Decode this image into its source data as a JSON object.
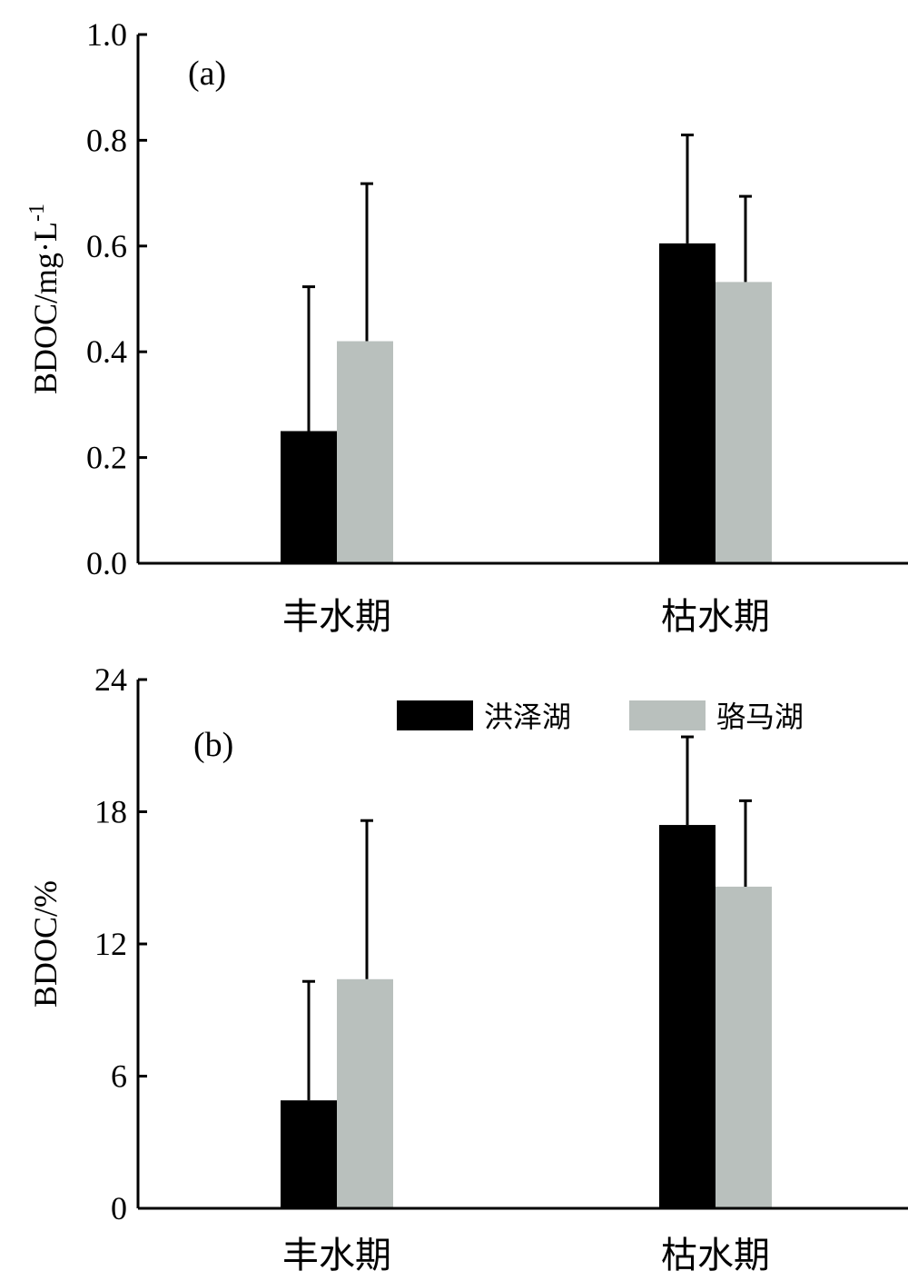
{
  "colors": {
    "hongze": "#000000",
    "luoma": "#b9c0bd",
    "axis": "#000000"
  },
  "legend": [
    "洪泽湖",
    "骆马湖"
  ],
  "chart_data": [
    {
      "type": "bar",
      "panel_label": "(a)",
      "ylabel": "BDOC/mg·L",
      "ylabel_sup": "-1",
      "ylim": [
        0,
        1.0
      ],
      "yticks": [
        "0.0",
        "0.2",
        "0.4",
        "0.6",
        "0.8",
        "1.0"
      ],
      "categories": [
        "丰水期",
        "枯水期"
      ],
      "series": [
        {
          "name": "洪泽湖",
          "values": [
            0.25,
            0.605
          ],
          "errors": [
            0.273,
            0.205
          ]
        },
        {
          "name": "骆马湖",
          "values": [
            0.42,
            0.532
          ],
          "errors": [
            0.298,
            0.162
          ]
        }
      ]
    },
    {
      "type": "bar",
      "panel_label": "(b)",
      "ylabel": "BDOC/%",
      "ylim": [
        0,
        24
      ],
      "yticks": [
        "0",
        "6",
        "12",
        "18",
        "24"
      ],
      "categories": [
        "丰水期",
        "枯水期"
      ],
      "series": [
        {
          "name": "洪泽湖",
          "values": [
            4.9,
            17.4
          ],
          "errors": [
            5.4,
            4.0
          ]
        },
        {
          "name": "骆马湖",
          "values": [
            10.4,
            14.6
          ],
          "errors": [
            7.2,
            3.9
          ]
        }
      ]
    }
  ]
}
